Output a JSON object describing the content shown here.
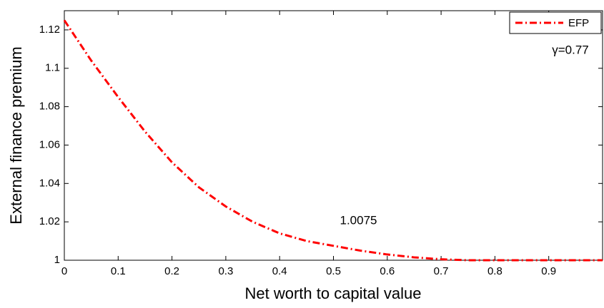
{
  "chart_data": {
    "type": "line",
    "xlabel": "Net worth to capital value",
    "ylabel": "External finance premium",
    "x": [
      0,
      0.05,
      0.1,
      0.15,
      0.2,
      0.25,
      0.3,
      0.35,
      0.4,
      0.45,
      0.5,
      0.55,
      0.6,
      0.65,
      0.7,
      0.75,
      0.8,
      0.85,
      0.9,
      0.95,
      1.0
    ],
    "series": [
      {
        "name": "EFP",
        "color": "#ff0000",
        "values": [
          1.125,
          1.104,
          1.085,
          1.067,
          1.051,
          1.038,
          1.028,
          1.02,
          1.014,
          1.01,
          1.0075,
          1.005,
          1.003,
          1.0015,
          1.0005,
          1.0,
          1.0,
          1.0,
          1.0,
          1.0,
          1.0
        ]
      }
    ],
    "xlim": [
      0,
      1
    ],
    "ylim": [
      1,
      1.13
    ],
    "xticks": [
      0,
      0.1,
      0.2,
      0.3,
      0.4,
      0.5,
      0.6,
      0.7,
      0.8,
      0.9
    ],
    "yticks": [
      1,
      1.02,
      1.04,
      1.06,
      1.08,
      1.1,
      1.12
    ],
    "annotations": [
      "1.0075",
      "γ=0.77"
    ],
    "legend": "upper right",
    "grid": false
  }
}
